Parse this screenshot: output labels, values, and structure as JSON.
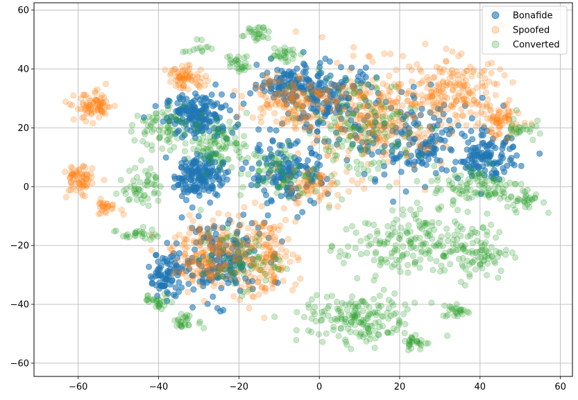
{
  "chart_data": {
    "type": "scatter",
    "title": "",
    "xlabel": "",
    "ylabel": "",
    "xlim": [
      -71,
      63
    ],
    "ylim": [
      -64.5,
      62.5
    ],
    "xticks": [
      -60,
      -40,
      -20,
      0,
      20,
      40,
      60
    ],
    "yticks": [
      -60,
      -40,
      -20,
      0,
      20,
      40,
      60
    ],
    "grid": true,
    "legend_position": "top-right",
    "series": [
      {
        "name": "Bonafide",
        "color": "#1f77b4",
        "opacity": 0.6,
        "clusters": [
          {
            "center": [
              -30,
              24
            ],
            "spread": [
              7,
              6
            ],
            "weight": 0.13
          },
          {
            "center": [
              -30,
              4
            ],
            "spread": [
              5,
              6
            ],
            "weight": 0.12
          },
          {
            "center": [
              -25,
              -25
            ],
            "spread": [
              9,
              11
            ],
            "weight": 0.15
          },
          {
            "center": [
              -8,
              4
            ],
            "spread": [
              8,
              9
            ],
            "weight": 0.11
          },
          {
            "center": [
              2,
              30
            ],
            "spread": [
              10,
              10
            ],
            "weight": 0.14
          },
          {
            "center": [
              -8,
              35
            ],
            "spread": [
              6,
              5
            ],
            "weight": 0.07
          },
          {
            "center": [
              25,
              15
            ],
            "spread": [
              14,
              12
            ],
            "weight": 0.14
          },
          {
            "center": [
              -38,
              -30
            ],
            "spread": [
              4,
              6
            ],
            "weight": 0.06
          },
          {
            "center": [
              42,
              10
            ],
            "spread": [
              6,
              6
            ],
            "weight": 0.08
          }
        ]
      },
      {
        "name": "Spoofed",
        "color": "#ff7f0e",
        "opacity": 0.25,
        "clusters": [
          {
            "center": [
              -56,
              27
            ],
            "spread": [
              4,
              4
            ],
            "weight": 0.06
          },
          {
            "center": [
              -60,
              2
            ],
            "spread": [
              3,
              5
            ],
            "weight": 0.05
          },
          {
            "center": [
              -53,
              -7
            ],
            "spread": [
              3,
              2
            ],
            "weight": 0.02
          },
          {
            "center": [
              -33,
              37
            ],
            "spread": [
              4,
              3
            ],
            "weight": 0.05
          },
          {
            "center": [
              -27,
              -23
            ],
            "spread": [
              8,
              9
            ],
            "weight": 0.14
          },
          {
            "center": [
              -14,
              -24
            ],
            "spread": [
              7,
              12
            ],
            "weight": 0.12
          },
          {
            "center": [
              -8,
              30
            ],
            "spread": [
              8,
              8
            ],
            "weight": 0.1
          },
          {
            "center": [
              14,
              24
            ],
            "spread": [
              14,
              15
            ],
            "weight": 0.24
          },
          {
            "center": [
              34,
              33
            ],
            "spread": [
              10,
              9
            ],
            "weight": 0.12
          },
          {
            "center": [
              45,
              22
            ],
            "spread": [
              5,
              5
            ],
            "weight": 0.05
          },
          {
            "center": [
              -2,
              0
            ],
            "spread": [
              7,
              5
            ],
            "weight": 0.05
          }
        ]
      },
      {
        "name": "Converted",
        "color": "#2ca02c",
        "opacity": 0.25,
        "clusters": [
          {
            "center": [
              -16,
              52
            ],
            "spread": [
              3,
              2
            ],
            "weight": 0.02
          },
          {
            "center": [
              -20,
              42
            ],
            "spread": [
              2,
              3
            ],
            "weight": 0.02
          },
          {
            "center": [
              -9,
              45
            ],
            "spread": [
              3,
              2
            ],
            "weight": 0.02
          },
          {
            "center": [
              -30,
              47
            ],
            "spread": [
              3,
              2
            ],
            "weight": 0.01
          },
          {
            "center": [
              -40,
              20
            ],
            "spread": [
              5,
              6
            ],
            "weight": 0.05
          },
          {
            "center": [
              -25,
              15
            ],
            "spread": [
              6,
              7
            ],
            "weight": 0.07
          },
          {
            "center": [
              -44,
              0
            ],
            "spread": [
              4,
              6
            ],
            "weight": 0.04
          },
          {
            "center": [
              -45,
              -16
            ],
            "spread": [
              4,
              2
            ],
            "weight": 0.02
          },
          {
            "center": [
              -40,
              -39
            ],
            "spread": [
              3,
              2
            ],
            "weight": 0.02
          },
          {
            "center": [
              -33,
              -46
            ],
            "spread": [
              3,
              2
            ],
            "weight": 0.02
          },
          {
            "center": [
              10,
              -45
            ],
            "spread": [
              12,
              7
            ],
            "weight": 0.13
          },
          {
            "center": [
              20,
              -20
            ],
            "spread": [
              12,
              10
            ],
            "weight": 0.12
          },
          {
            "center": [
              38,
              -22
            ],
            "spread": [
              8,
              8
            ],
            "weight": 0.08
          },
          {
            "center": [
              40,
              0
            ],
            "spread": [
              10,
              6
            ],
            "weight": 0.08
          },
          {
            "center": [
              52,
              -5
            ],
            "spread": [
              3,
              3
            ],
            "weight": 0.02
          },
          {
            "center": [
              34,
              -42
            ],
            "spread": [
              3,
              2
            ],
            "weight": 0.02
          },
          {
            "center": [
              24,
              -53
            ],
            "spread": [
              3,
              2
            ],
            "weight": 0.02
          },
          {
            "center": [
              50,
              20
            ],
            "spread": [
              3,
              4
            ],
            "weight": 0.02
          },
          {
            "center": [
              10,
              20
            ],
            "spread": [
              12,
              15
            ],
            "weight": 0.1
          },
          {
            "center": [
              -10,
              5
            ],
            "spread": [
              8,
              8
            ],
            "weight": 0.05
          },
          {
            "center": [
              -20,
              -25
            ],
            "spread": [
              8,
              8
            ],
            "weight": 0.05
          }
        ]
      }
    ]
  }
}
